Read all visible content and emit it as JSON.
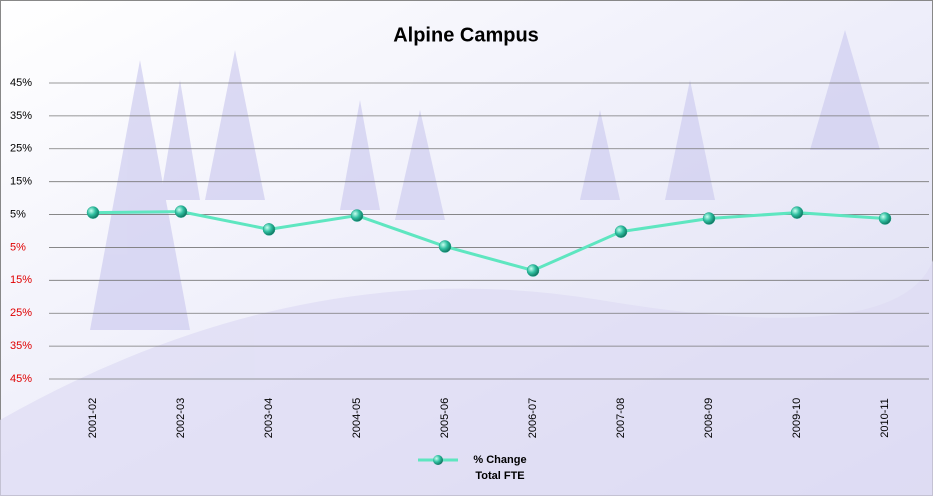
{
  "chart_data": {
    "type": "line",
    "title": "Alpine Campus",
    "categories": [
      "2001-02",
      "2002-03",
      "2003-04",
      "2004-05",
      "2005-06",
      "2006-07",
      "2007-08",
      "2008-09",
      "2009-10",
      "2010-11"
    ],
    "series": [
      {
        "name": "% Change Total FTE",
        "color": "#5ee6c0",
        "marker_color": "#1fa58a",
        "values": [
          5.6,
          5.9,
          0.5,
          4.7,
          -4.7,
          -12,
          -0.2,
          3.8,
          5.6,
          3.8
        ]
      }
    ],
    "ylim": [
      -45,
      45
    ],
    "yticks": [
      {
        "value": 45,
        "label": "45%"
      },
      {
        "value": 35,
        "label": "35%"
      },
      {
        "value": 25,
        "label": "25%"
      },
      {
        "value": 15,
        "label": "15%"
      },
      {
        "value": 5,
        "label": "5%"
      },
      {
        "value": -5,
        "label": "5%"
      },
      {
        "value": -15,
        "label": "15%"
      },
      {
        "value": -25,
        "label": "25%"
      },
      {
        "value": -35,
        "label": "35%"
      },
      {
        "value": -45,
        "label": "45%"
      }
    ],
    "negative_tick_color": "#e00000",
    "grid": true,
    "legend": "bottom"
  }
}
